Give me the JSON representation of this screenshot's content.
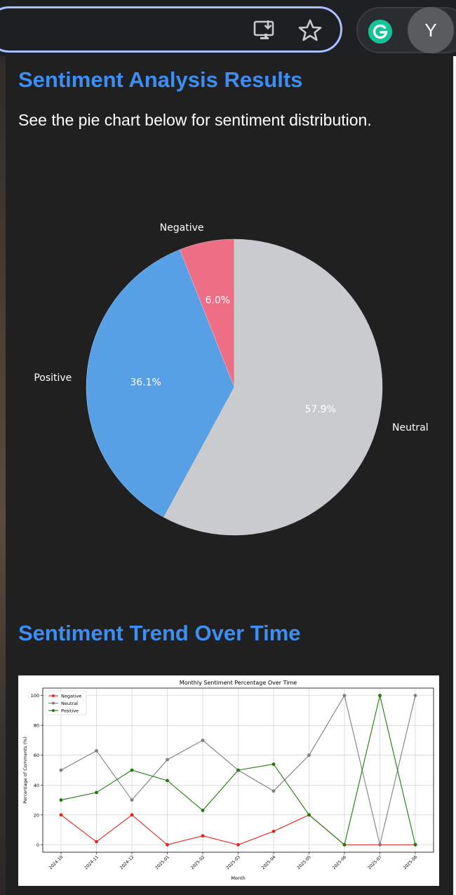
{
  "toolbar": {
    "icons": [
      "install-app-icon",
      "bookmark-star-icon",
      "grammarly-icon"
    ],
    "avatar_letter": "Y"
  },
  "popup": {
    "heading": "Sentiment Analysis Results",
    "description": "See the pie chart below for sentiment distribution.",
    "trend_heading": "Sentiment Trend Over Time"
  },
  "colors": {
    "heading": "#3b8ef5",
    "negative_slice": "#ee6e86",
    "neutral_slice": "#cacbcf",
    "positive_slice": "#57a0e5",
    "negative_line": "#e8231e",
    "neutral_line": "#7f7f7f",
    "positive_line": "#1f7a0c"
  },
  "chart_data": [
    {
      "type": "pie",
      "title": "",
      "slices": [
        {
          "label": "Negative",
          "value": 6.0,
          "pct_label": "6.0%",
          "color": "#ee6e86"
        },
        {
          "label": "Positive",
          "value": 36.1,
          "pct_label": "36.1%",
          "color": "#57a0e5"
        },
        {
          "label": "Neutral",
          "value": 57.9,
          "pct_label": "57.9%",
          "color": "#cacbcf"
        }
      ],
      "start_angle_deg": 90,
      "counterclock": true
    },
    {
      "type": "line",
      "title": "Monthly Sentiment Percentage Over Time",
      "xlabel": "Month",
      "ylabel": "Percentage of Comments (%)",
      "categories": [
        "2024-10",
        "2024-11",
        "2024-12",
        "2025-01",
        "2025-02",
        "2025-03",
        "2025-04",
        "2025-05",
        "2025-06",
        "2025-07",
        "2025-08"
      ],
      "ylim": [
        -5,
        105
      ],
      "yticks": [
        0,
        20,
        40,
        60,
        80,
        100
      ],
      "grid": true,
      "legend": "top-left",
      "series": [
        {
          "name": "Negative",
          "color": "#e8231e",
          "values": [
            20,
            2,
            20,
            0,
            6,
            0,
            9,
            20,
            0,
            0,
            0
          ]
        },
        {
          "name": "Neutral",
          "color": "#7f7f7f",
          "values": [
            50,
            63,
            30,
            57,
            70,
            50,
            36,
            60,
            100,
            0,
            100
          ]
        },
        {
          "name": "Positive",
          "color": "#1f7a0c",
          "values": [
            30,
            35,
            50,
            43,
            23,
            50,
            54,
            20,
            0,
            100,
            0
          ]
        }
      ]
    }
  ]
}
